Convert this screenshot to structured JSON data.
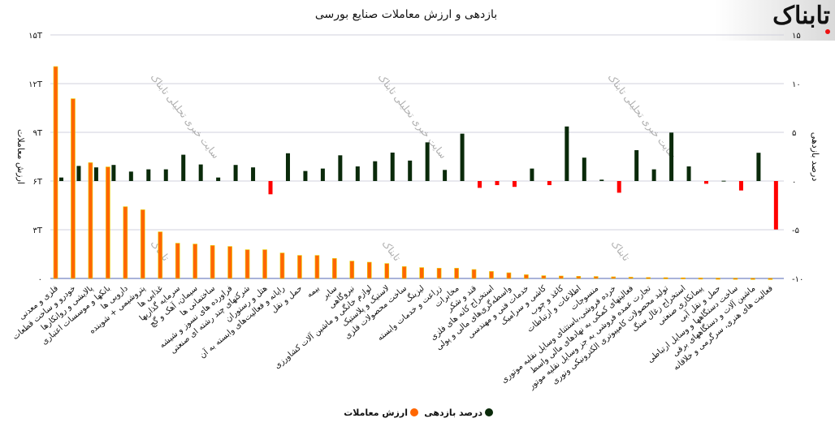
{
  "logo_text": "تابناک",
  "watermark": "سایت خبری تحلیلی تابناک",
  "colors": {
    "value": "#ff6600",
    "return_pos": "#0a2a0a",
    "return_neg": "#ff0000",
    "grid": "#d0d0dc"
  },
  "chart_data": {
    "type": "bar",
    "title": "بازدهی و ارزش معاملات صنایع بورسی",
    "ylabel_left": "ارزش معاملات",
    "ylabel_right": "درصد بازدهی",
    "ylim_left": [
      0,
      15
    ],
    "ylim_right": [
      -10,
      15
    ],
    "yticks_left": [
      "۰",
      "۳T",
      "۶T",
      "۹T",
      "۱۲T",
      "۱۵T"
    ],
    "yticks_right": [
      "-۱۰",
      "-۵",
      "۰",
      "۵",
      "۱۰",
      "۱۵"
    ],
    "grid": true,
    "legend_position": "bottom",
    "categories": [
      "فلزی و معدنی",
      "خودرو و ساخت قطعات",
      "پالایشی و روانکارها",
      "بانکها و موسسات اعتباری",
      "دارویی ها",
      "پتروشیمی + شوینده",
      "غذایی ها",
      "سرمایه گذاریها",
      "سیمان، آهک و گچ",
      "ساختمانی ها",
      "فراورده های نسوز و شیشه",
      "شرکتهای چند رشته ای صنعتی",
      "هتل و رستوران",
      "رایانه و فعالیت‌های وابسته به آن",
      "حمل و نقل",
      "بیمه",
      "سایر",
      "نیروگاهی",
      "لوازم خانگی و ماشین آلات کشاورزی",
      "لاستیک و پلاستیک",
      "ساخت محصولات فلزی",
      "لیزینگ",
      "زراعت و خدمات وابسته",
      "مخابرات",
      "قند و شکر",
      "استخراج کانه های فلزی",
      "واسطه‌گری‌های مالی و پولی",
      "خدمات فنی و مهندسی",
      "کاشی و سرامیک",
      "کاغذ و چوب",
      "اطلاعات و ارتباطات",
      "منسوجات",
      "خرده فروشی،باستثنای وسایل نقلیه موتوری",
      "فعالیتهای کمکی به نهادهای مالی واسط",
      "تجارت عمده فروشی به جز وسایل نقلیه موتور",
      "تولید محصولات کامپیوتری الکترونیکی ونوری",
      "استخراج زغال سنگ",
      "پیمانکاری صنعتی",
      "حمل و نقل آبی",
      "ساخت دستگاهها و وسایل ارتباطی",
      "ماشین آلات و دستگاههای برقی",
      "فعالیت های هنری، سرگرمی و خلاقانه"
    ],
    "series": [
      {
        "name": "ارزش معاملات",
        "axis": "left",
        "unit": "T",
        "values": [
          13.05,
          11.07,
          7.13,
          6.87,
          4.42,
          4.23,
          2.87,
          2.17,
          2.12,
          2.03,
          1.97,
          1.77,
          1.77,
          1.57,
          1.42,
          1.42,
          1.23,
          1.07,
          1.0,
          0.92,
          0.73,
          0.67,
          0.63,
          0.63,
          0.55,
          0.43,
          0.35,
          0.23,
          0.17,
          0.15,
          0.13,
          0.12,
          0.1,
          0.08,
          0.06,
          0.05,
          0.04,
          0.03,
          0.02,
          0.015,
          0.01,
          0.005
        ]
      },
      {
        "name": "درصد بازدهی",
        "axis": "right",
        "values": [
          0.36,
          1.55,
          1.4,
          1.65,
          0.97,
          1.2,
          1.2,
          2.7,
          1.7,
          0.36,
          1.65,
          1.4,
          -1.36,
          2.85,
          1.03,
          1.28,
          2.64,
          1.5,
          2.03,
          2.92,
          2.1,
          3.97,
          1.14,
          4.86,
          -0.7,
          -0.42,
          -0.6,
          1.28,
          -0.42,
          5.6,
          2.4,
          0.14,
          -1.2,
          3.17,
          1.2,
          4.97,
          1.5,
          -0.28,
          0.03,
          -0.97,
          2.9,
          -4.97
        ]
      }
    ]
  }
}
